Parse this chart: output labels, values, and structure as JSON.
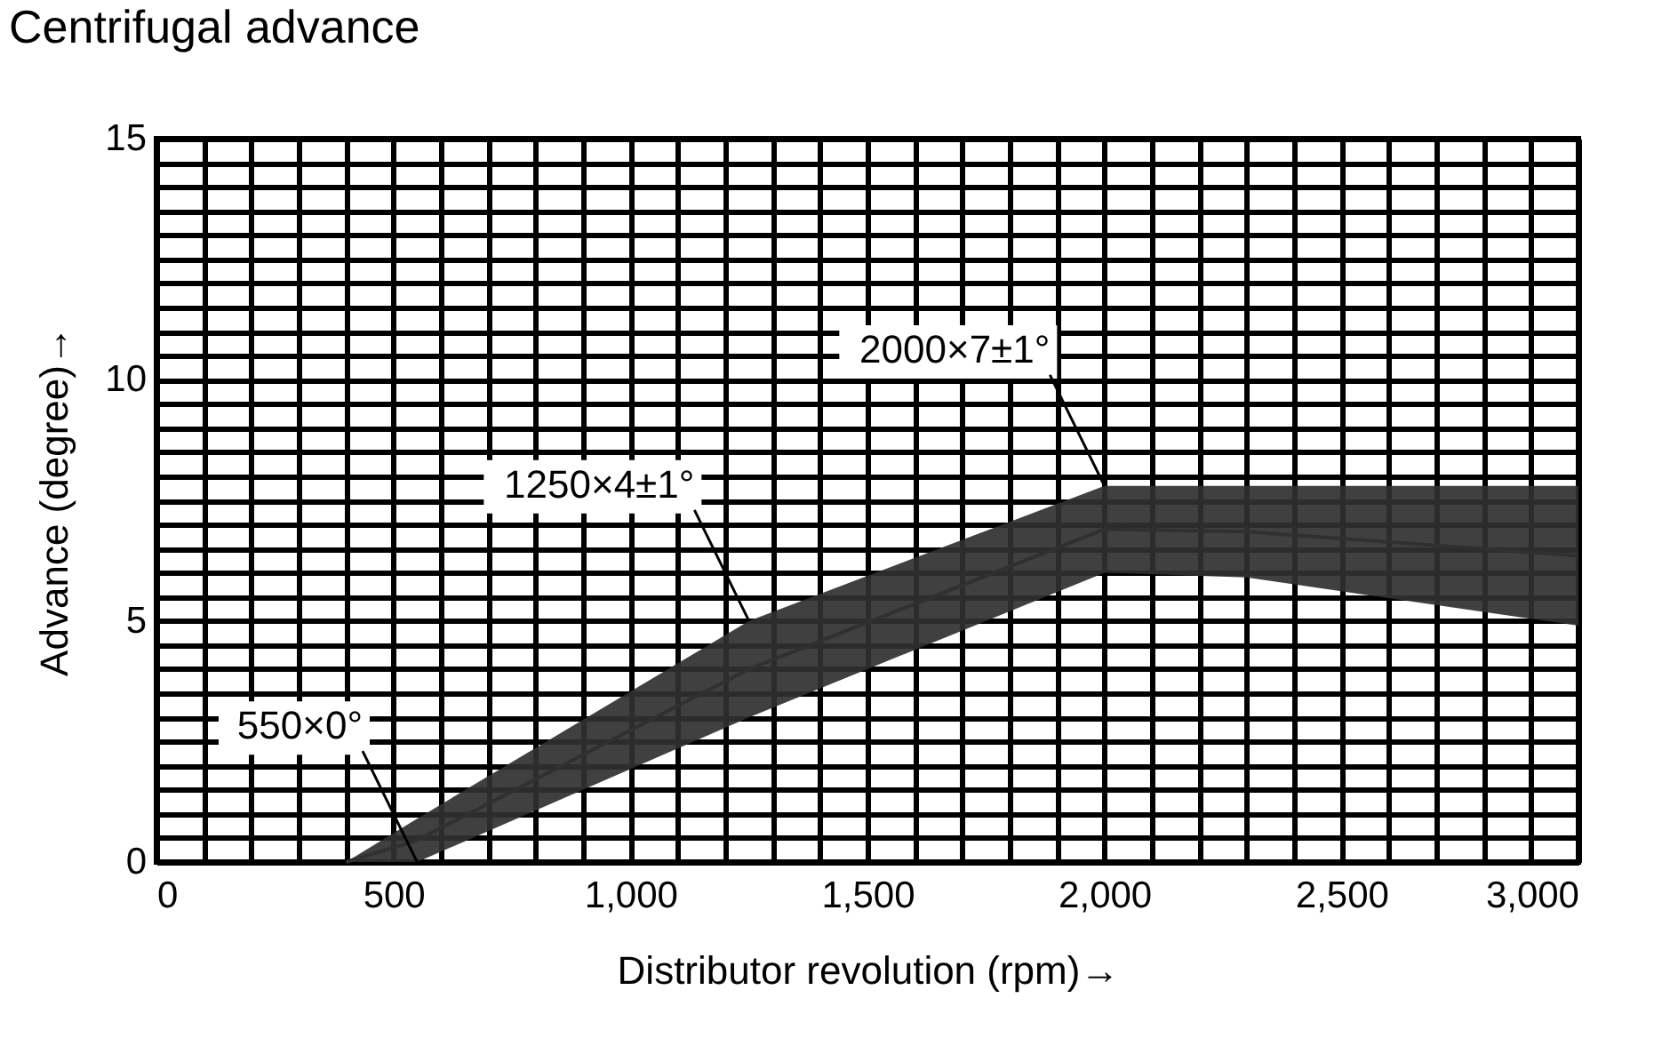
{
  "chart_data": {
    "type": "line",
    "title": "Centrifugal advance",
    "xlabel": "Distributor revolution (rpm)→",
    "ylabel": "Advance (degree)→",
    "series": [
      {
        "color": "#303030",
        "x": [
          400,
          550,
          1250,
          2000,
          2300,
          3000
        ],
        "lower": [
          0,
          0,
          3,
          6,
          5.9,
          4.9
        ],
        "upper": [
          0,
          0.9,
          5,
          7.8,
          7.8,
          7.8
        ],
        "values": [
          0,
          0.45,
          4,
          6.9,
          6.85,
          6.35
        ]
      }
    ],
    "annotations": [
      {
        "text": "550×0°",
        "x": 550,
        "y": 0
      },
      {
        "text": "1250×4±1°",
        "x": 1250,
        "y": 5
      },
      {
        "text": "2000×7±1°",
        "x": 2000,
        "y": 7.8
      }
    ],
    "xlim": [
      0,
      3000
    ],
    "xticks": [
      0,
      {
        "value": 100,
        "label": null
      },
      {
        "value": 200,
        "label": null
      },
      {
        "value": 300,
        "label": null
      },
      {
        "value": 400,
        "label": null
      },
      500,
      {
        "value": 600,
        "label": null
      },
      {
        "value": 700,
        "label": null
      },
      {
        "value": 800,
        "label": null
      },
      {
        "value": 900,
        "label": null
      },
      {
        "value": 1000,
        "label": "1,000"
      },
      {
        "value": 1100,
        "label": null
      },
      {
        "value": 1200,
        "label": null
      },
      {
        "value": 1300,
        "label": null
      },
      {
        "value": 1400,
        "label": null
      },
      {
        "value": 1500,
        "label": "1,500"
      },
      {
        "value": 1600,
        "label": null
      },
      {
        "value": 1700,
        "label": null
      },
      {
        "value": 1800,
        "label": null
      },
      {
        "value": 1900,
        "label": null
      },
      {
        "value": 2000,
        "label": "2,000"
      },
      {
        "value": 2100,
        "label": null
      },
      {
        "value": 2200,
        "label": null
      },
      {
        "value": 2300,
        "label": null
      },
      {
        "value": 2400,
        "label": null
      },
      {
        "value": 2500,
        "label": "2,500"
      },
      {
        "value": 2600,
        "label": null
      },
      {
        "value": 2700,
        "label": null
      },
      {
        "value": 2800,
        "label": null
      },
      {
        "value": 2900,
        "label": null
      },
      {
        "value": 3000,
        "label": "3,000"
      }
    ],
    "ylim": [
      0,
      15
    ],
    "yticks": [
      0,
      {
        "value": 0.5,
        "label": null
      },
      {
        "value": 1,
        "label": null
      },
      {
        "value": 1.5,
        "label": null
      },
      {
        "value": 2,
        "label": null
      },
      {
        "value": 2.5,
        "label": null
      },
      {
        "value": 3,
        "label": null
      },
      {
        "value": 3.5,
        "label": null
      },
      {
        "value": 4,
        "label": null
      },
      {
        "value": 4.5,
        "label": null
      },
      5,
      {
        "value": 5.5,
        "label": null
      },
      {
        "value": 6,
        "label": null
      },
      {
        "value": 6.5,
        "label": null
      },
      {
        "value": 7,
        "label": null
      },
      {
        "value": 7.5,
        "label": null
      },
      {
        "value": 8,
        "label": null
      },
      {
        "value": 8.5,
        "label": null
      },
      {
        "value": 9,
        "label": null
      },
      {
        "value": 9.5,
        "label": null
      },
      10,
      {
        "value": 10.5,
        "label": null
      },
      {
        "value": 11,
        "label": null
      },
      {
        "value": 11.5,
        "label": null
      },
      {
        "value": 12,
        "label": null
      },
      {
        "value": 12.5,
        "label": null
      },
      {
        "value": 13,
        "label": null
      },
      {
        "value": 13.5,
        "label": null
      },
      {
        "value": 14,
        "label": null
      },
      {
        "value": 14.5,
        "label": null
      },
      15
    ],
    "grid": true
  }
}
